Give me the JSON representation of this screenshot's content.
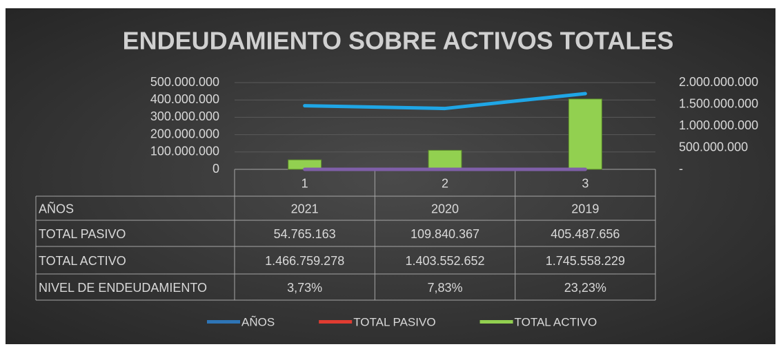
{
  "chart_data": {
    "type": "combo",
    "title": "ENDEUDAMIENTO SOBRE ACTIVOS TOTALES",
    "categories": [
      "1",
      "2",
      "3"
    ],
    "ylim": [
      0,
      500000000
    ],
    "yticks": [
      0,
      {
        "value": 100000000,
        "label": "100.000.000"
      },
      {
        "value": 200000000,
        "label": "200.000.000"
      },
      {
        "value": 300000000,
        "label": "300.000.000"
      },
      {
        "value": 400000000,
        "label": "400.000.000"
      },
      {
        "value": 500000000,
        "label": "500.000.000"
      }
    ],
    "y2lim": [
      0,
      2000000000
    ],
    "y2ticks": [
      {
        "value": 0,
        "label": "-"
      },
      {
        "value": 500000000,
        "label": "500.000.000"
      },
      {
        "value": 1000000000,
        "label": "1.000.000.000"
      },
      {
        "value": 1500000000,
        "label": "1.500.000.000"
      },
      {
        "value": 2000000000,
        "label": "2.000.000.000"
      }
    ],
    "series": [
      {
        "name": "AÑOS",
        "type": "line",
        "color": "#7f5fa8",
        "legend_color": "#2e75b6",
        "values": [
          2021,
          2020,
          2019
        ]
      },
      {
        "name": "TOTAL PASIVO",
        "type": "bar",
        "color": "#92d050",
        "legend_color": "#e03c31",
        "values": [
          54765163,
          109840367,
          405487656
        ],
        "value_labels": [
          "54.765.163",
          "109.840.367",
          "405.487.656"
        ]
      },
      {
        "name": "TOTAL ACTIVO",
        "type": "line",
        "axis": "y2",
        "color": "#1fa6e6",
        "legend_color": "#92d050",
        "values": [
          1466759278,
          1403552652,
          1745558229
        ],
        "value_labels": [
          "1.466.759.278",
          "1.403.552.652",
          "1.745.558.229"
        ]
      },
      {
        "name": "NIVEL DE ENDEUDAMIENTO",
        "type": "table",
        "values": [
          3.73,
          7.83,
          23.23
        ],
        "value_labels": [
          "3,73%",
          "7,83%",
          "23,23%"
        ]
      }
    ]
  }
}
